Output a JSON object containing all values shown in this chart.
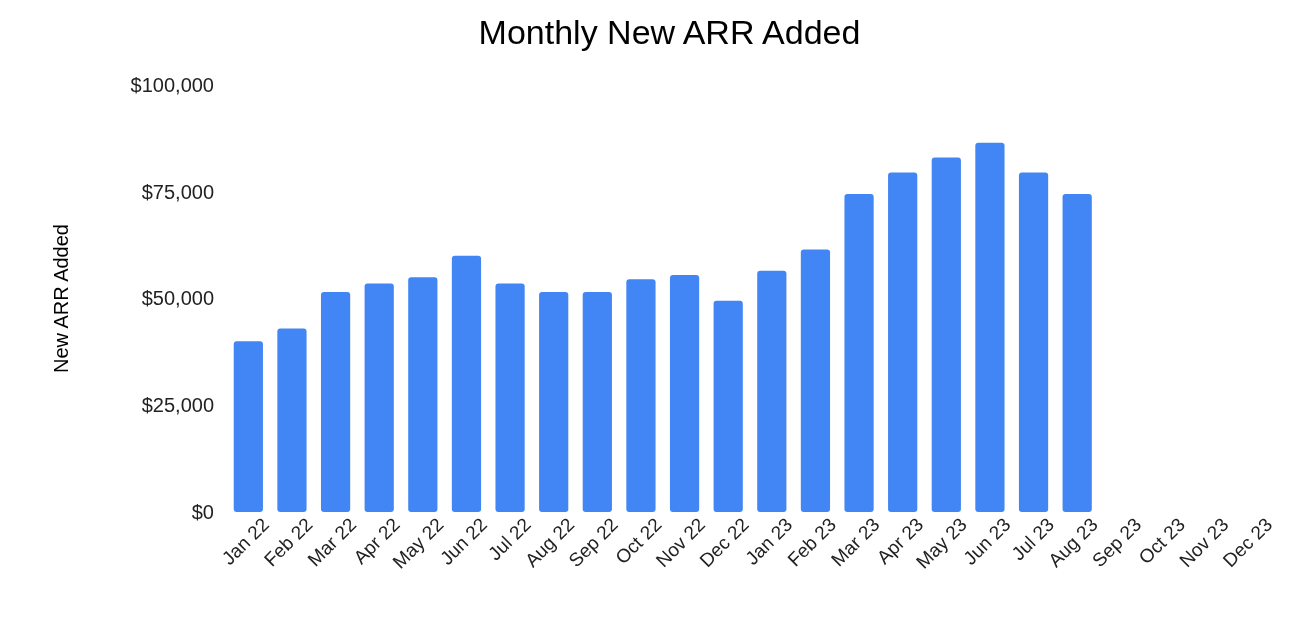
{
  "chart_data": {
    "type": "bar",
    "title": "Monthly New ARR Added",
    "ylabel": "New ARR Added",
    "categories": [
      "Jan 22",
      "Feb 22",
      "Mar 22",
      "Apr 22",
      "May 22",
      "Jun 22",
      "Jul 22",
      "Aug 22",
      "Sep 22",
      "Oct 22",
      "Nov 22",
      "Dec 22",
      "Jan 23",
      "Feb 23",
      "Mar 23",
      "Apr 23",
      "May 23",
      "Jun 23",
      "Jul 23",
      "Aug 23",
      "Sep 23",
      "Oct 23",
      "Nov 23",
      "Dec 23"
    ],
    "values": [
      40000,
      43000,
      51500,
      53500,
      55000,
      60000,
      53500,
      51500,
      51500,
      54500,
      55500,
      49500,
      56500,
      61500,
      74500,
      79500,
      83000,
      86500,
      79500,
      74500,
      null,
      null,
      null,
      null
    ],
    "color": "#4285f4",
    "ylim": [
      0,
      100000
    ],
    "yticks": [
      {
        "value": 0,
        "label": "$0"
      },
      {
        "value": 25000,
        "label": "$25,000"
      },
      {
        "value": 50000,
        "label": "$50,000"
      },
      {
        "value": 75000,
        "label": "$75,000"
      },
      {
        "value": 100000,
        "label": "$100,000"
      }
    ],
    "grid": false
  }
}
